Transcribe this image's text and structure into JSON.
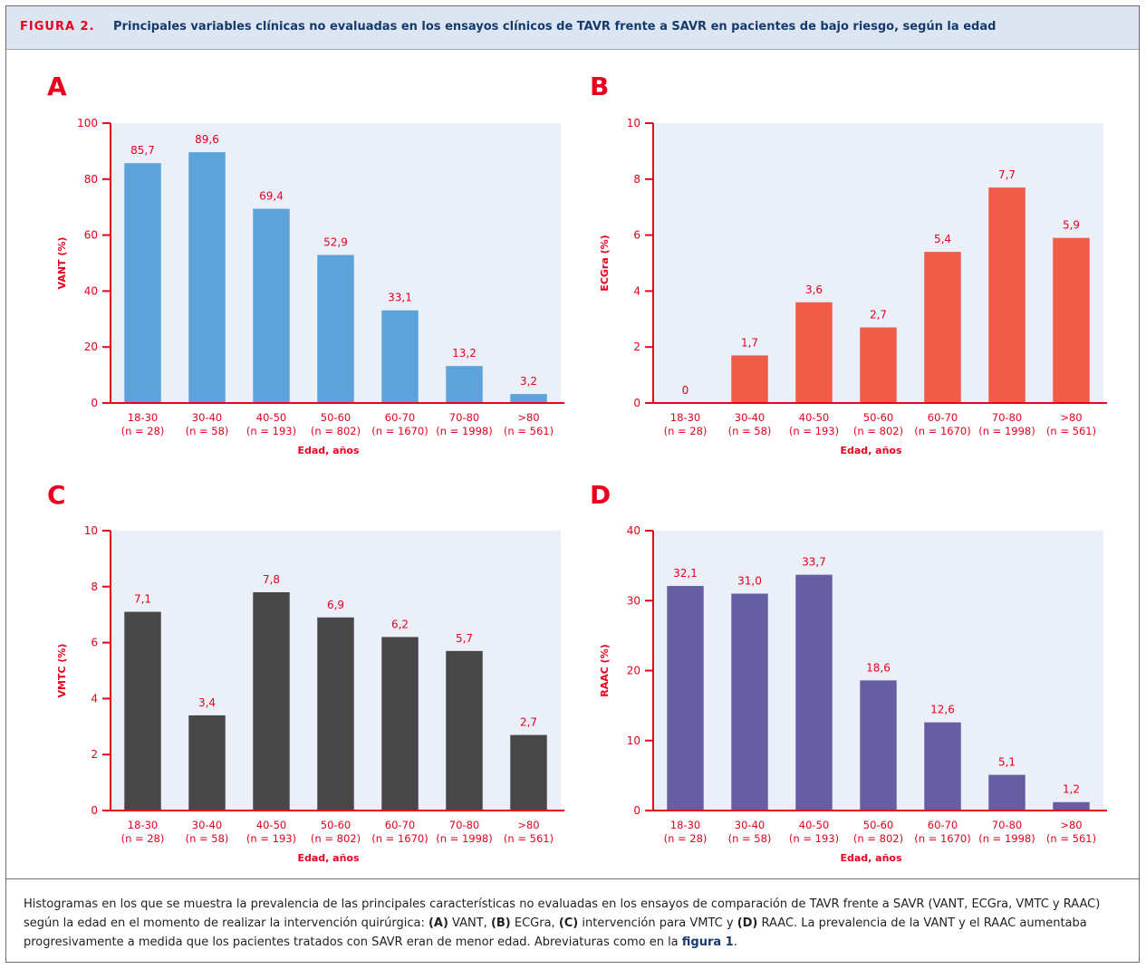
{
  "figure": {
    "label": "FIGURA 2.",
    "title": "Principales variables clínicas no evaluadas en los ensayos clínicos de TAVR frente a SAVR en pacientes de bajo riesgo, según la edad"
  },
  "caption": {
    "t1": "Histogramas en los que se muestra la prevalencia de las principales características no evaluadas en los ensayos de comparación de TAVR frente a SAVR (VANT, ECGra, VMTC y RAAC) según la edad en el momento de realizar la intervención quirúrgica: ",
    "a": "(A)",
    "t2": " VANT, ",
    "b": "(B)",
    "t3": " ECGra, ",
    "c": "(C)",
    "t4": " intervención para VMTC y ",
    "d": "(D)",
    "t5": " RAAC. La prevalencia de la VANT y el RAAC aumentaba progresivamente a medida que los pacientes tratados con SAVR eran de menor edad. Abreviaturas como en la ",
    "ref": "figura 1",
    "t6": "."
  },
  "colors": {
    "accent": "#e8001c",
    "panel_bg": "#eaeff8",
    "header_bg": "#dce6f2",
    "title_text": "#163a6b"
  },
  "chart_data": [
    {
      "panel": "A",
      "type": "bar",
      "categories": [
        "18-30",
        "30-40",
        "40-50",
        "50-60",
        "60-70",
        "70-80",
        ">80"
      ],
      "category_n": [
        "(n = 28)",
        "(n = 58)",
        "(n = 193)",
        "(n = 802)",
        "(n = 1670)",
        "(n = 1998)",
        "(n = 561)"
      ],
      "values": [
        85.7,
        89.6,
        69.4,
        52.9,
        33.1,
        13.2,
        3.2
      ],
      "value_labels": [
        "85,7",
        "89,6",
        "69,4",
        "52,9",
        "33,1",
        "13,2",
        "3,2"
      ],
      "ylabel": "VANT (%)",
      "xlabel": "Edad, años",
      "ylim": [
        0,
        100
      ],
      "yticks": [
        0,
        20,
        40,
        60,
        80,
        100
      ],
      "bar_color": "#5ba3d9",
      "grid": false
    },
    {
      "panel": "B",
      "type": "bar",
      "categories": [
        "18-30",
        "30-40",
        "40-50",
        "50-60",
        "60-70",
        "70-80",
        ">80"
      ],
      "category_n": [
        "(n = 28)",
        "(n = 58)",
        "(n = 193)",
        "(n = 802)",
        "(n = 1670)",
        "(n = 1998)",
        "(n = 561)"
      ],
      "values": [
        0,
        1.7,
        3.6,
        2.7,
        5.4,
        7.7,
        5.9
      ],
      "value_labels": [
        "0",
        "1,7",
        "3,6",
        "2,7",
        "5,4",
        "7,7",
        "5,9"
      ],
      "ylabel": "ECGra (%)",
      "xlabel": "Edad, años",
      "ylim": [
        0,
        10
      ],
      "yticks": [
        0,
        2,
        4,
        6,
        8,
        10
      ],
      "bar_color": "#f05c48",
      "grid": false
    },
    {
      "panel": "C",
      "type": "bar",
      "categories": [
        "18-30",
        "30-40",
        "40-50",
        "50-60",
        "60-70",
        "70-80",
        ">80"
      ],
      "category_n": [
        "(n = 28)",
        "(n = 58)",
        "(n = 193)",
        "(n = 802)",
        "(n = 1670)",
        "(n = 1998)",
        "(n = 561)"
      ],
      "values": [
        7.1,
        3.4,
        7.8,
        6.9,
        6.2,
        5.7,
        2.7
      ],
      "value_labels": [
        "7,1",
        "3,4",
        "7,8",
        "6,9",
        "6,2",
        "5,7",
        "2,7"
      ],
      "ylabel": "VMTC (%)",
      "xlabel": "Edad, años",
      "ylim": [
        0,
        10
      ],
      "yticks": [
        0,
        2,
        4,
        6,
        8,
        10
      ],
      "bar_color": "#474748",
      "grid": false
    },
    {
      "panel": "D",
      "type": "bar",
      "categories": [
        "18-30",
        "30-40",
        "40-50",
        "50-60",
        "60-70",
        "70-80",
        ">80"
      ],
      "category_n": [
        "(n = 28)",
        "(n = 58)",
        "(n = 193)",
        "(n = 802)",
        "(n = 1670)",
        "(n = 1998)",
        "(n = 561)"
      ],
      "values": [
        32.1,
        31.0,
        33.7,
        18.6,
        12.6,
        5.1,
        1.2
      ],
      "value_labels": [
        "32,1",
        "31,0",
        "33,7",
        "18,6",
        "12,6",
        "5,1",
        "1,2"
      ],
      "ylabel": "RAAC (%)",
      "xlabel": "Edad, años",
      "ylim": [
        0,
        40
      ],
      "yticks": [
        0,
        10,
        20,
        30,
        40
      ],
      "bar_color": "#665ea3",
      "grid": false
    }
  ]
}
